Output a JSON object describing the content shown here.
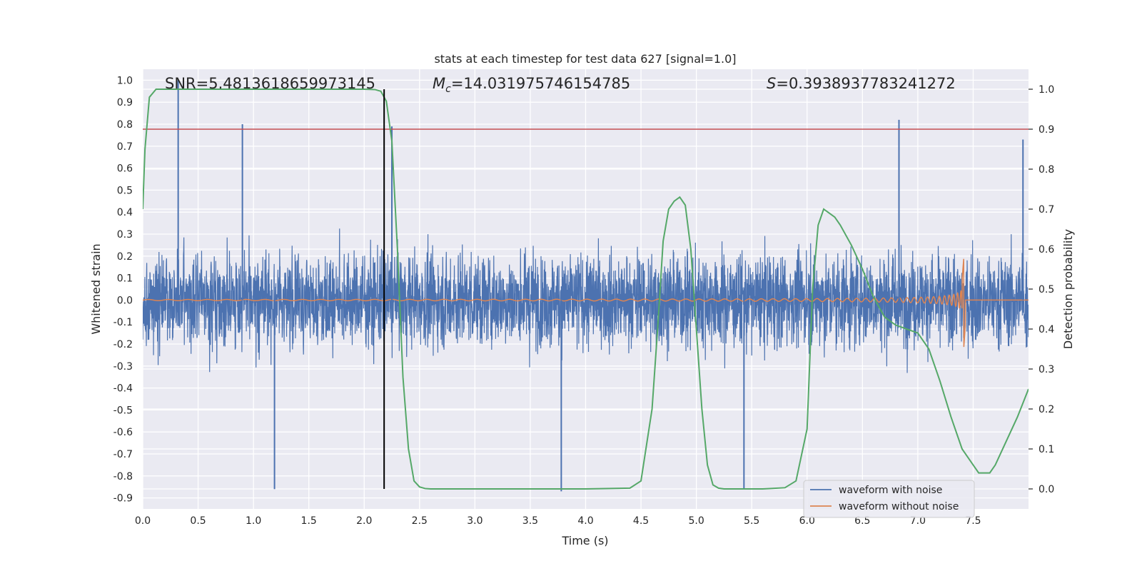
{
  "chart_data": {
    "type": "line",
    "title": "stats at each timestep for test data 627 [signal=1.0]",
    "xlabel": "Time (s)",
    "ylabel_left": "Whitened strain",
    "ylabel_right": "Detection probability",
    "xlim": [
      0.0,
      8.0
    ],
    "ylim_left": [
      -0.95,
      1.05
    ],
    "ylim_right": [
      -0.05,
      1.05
    ],
    "x_ticks": [
      "0.0",
      "0.5",
      "1.0",
      "1.5",
      "2.0",
      "2.5",
      "3.0",
      "3.5",
      "4.0",
      "4.5",
      "5.0",
      "5.5",
      "6.0",
      "6.5",
      "7.0",
      "7.5"
    ],
    "y_left_ticks": [
      "1.0",
      "0.9",
      "0.8",
      "0.7",
      "0.6",
      "0.5",
      "0.4",
      "0.3",
      "0.2",
      "0.1",
      "0.0",
      "-0.1",
      "-0.2",
      "-0.3",
      "-0.4",
      "-0.5",
      "-0.6",
      "-0.7",
      "-0.8",
      "-0.9"
    ],
    "y_right_ticks": [
      "1.0",
      "0.9",
      "0.8",
      "0.7",
      "0.6",
      "0.5",
      "0.4",
      "0.3",
      "0.2",
      "0.1",
      "0.0"
    ],
    "grid": true,
    "background": "#eaeaf2",
    "annotations": {
      "snr": "SNR=5.4813618659973145",
      "mc_symbol": "M",
      "mc_sub": "c",
      "mc_value": "=14.031975746154785",
      "s_symbol": "S",
      "s_value": "=0.3938937783241272"
    },
    "threshold_line": {
      "value_right_axis": 0.9,
      "color": "#c44e52"
    },
    "vertical_marker": {
      "x": 2.18,
      "color": "#000000"
    },
    "series": [
      {
        "name": "waveform with noise",
        "color": "#4c72b0",
        "description": "whitened noisy strain, fluctuates mostly between about -0.6 and 0.6 with peaks near 1.0 at x=0.32 and -0.86 at x=1.19",
        "envelope": {
          "typical_high": 0.45,
          "typical_low": -0.45
        },
        "spikes": [
          [
            0.32,
            1.0
          ],
          [
            0.9,
            0.8
          ],
          [
            1.19,
            -0.86
          ],
          [
            2.25,
            0.79
          ],
          [
            3.78,
            -0.87
          ],
          [
            5.43,
            -0.86
          ],
          [
            6.83,
            0.82
          ],
          [
            7.95,
            0.73
          ]
        ]
      },
      {
        "name": "waveform without noise",
        "color": "#dd8452",
        "description": "chirp signal, amplitude growing until merger near x=7.43 then flat at 0",
        "merger_time": 7.43,
        "peak_amplitude": [
          0.19,
          -0.22
        ]
      },
      {
        "name": "Detection probability",
        "color": "#55a868",
        "axis": "right",
        "x": [
          0.0,
          0.02,
          0.06,
          0.12,
          0.2,
          0.5,
          1.0,
          1.5,
          2.0,
          2.1,
          2.15,
          2.2,
          2.25,
          2.3,
          2.35,
          2.4,
          2.45,
          2.5,
          2.55,
          2.6,
          2.65,
          2.7,
          3.0,
          3.5,
          4.0,
          4.4,
          4.5,
          4.6,
          4.65,
          4.7,
          4.75,
          4.8,
          4.85,
          4.9,
          4.95,
          5.0,
          5.05,
          5.1,
          5.15,
          5.2,
          5.25,
          5.3,
          5.4,
          5.6,
          5.8,
          5.9,
          6.0,
          6.05,
          6.1,
          6.15,
          6.2,
          6.25,
          6.3,
          6.4,
          6.5,
          6.6,
          6.7,
          6.8,
          6.9,
          7.0,
          7.1,
          7.2,
          7.3,
          7.4,
          7.5,
          7.55,
          7.6,
          7.65,
          7.7,
          7.8,
          7.9,
          8.0
        ],
        "values": [
          0.7,
          0.85,
          0.98,
          1.0,
          1.0,
          1.0,
          1.0,
          1.0,
          1.0,
          0.999,
          0.995,
          0.97,
          0.87,
          0.6,
          0.28,
          0.1,
          0.02,
          0.005,
          0.001,
          0.0,
          0.0,
          0.0,
          0.0,
          0.0,
          0.0,
          0.002,
          0.02,
          0.2,
          0.4,
          0.62,
          0.7,
          0.72,
          0.73,
          0.71,
          0.6,
          0.4,
          0.2,
          0.06,
          0.01,
          0.002,
          0.0,
          0.0,
          0.0,
          0.0,
          0.003,
          0.02,
          0.15,
          0.5,
          0.66,
          0.7,
          0.69,
          0.68,
          0.66,
          0.61,
          0.55,
          0.48,
          0.43,
          0.41,
          0.4,
          0.39,
          0.35,
          0.27,
          0.18,
          0.1,
          0.06,
          0.04,
          0.04,
          0.04,
          0.06,
          0.12,
          0.18,
          0.25
        ]
      }
    ],
    "legend": {
      "placement": "lower-right",
      "entries": [
        "waveform with noise",
        "waveform without noise"
      ]
    }
  }
}
